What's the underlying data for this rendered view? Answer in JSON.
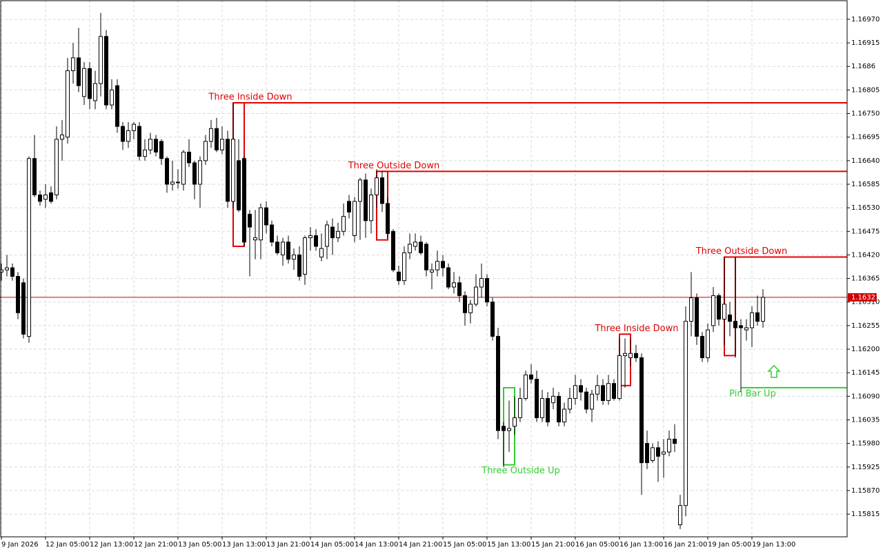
{
  "chart_data": {
    "type": "candlestick",
    "categories": [
      "9 Jan 2026",
      null,
      null,
      null,
      null,
      null,
      null,
      null,
      "12 Jan 05:00",
      null,
      null,
      null,
      null,
      null,
      null,
      null,
      "12 Jan 13:00",
      null,
      null,
      null,
      null,
      null,
      null,
      null,
      "12 Jan 21:00",
      null,
      null,
      null,
      null,
      null,
      null,
      null,
      "13 Jan 05:00",
      null,
      null,
      null,
      null,
      null,
      null,
      null,
      "13 Jan 13:00",
      null,
      null,
      null,
      null,
      null,
      null,
      null,
      "13 Jan 21:00",
      null,
      null,
      null,
      null,
      null,
      null,
      null,
      "14 Jan 05:00",
      null,
      null,
      null,
      null,
      null,
      null,
      null,
      "14 Jan 13:00",
      null,
      null,
      null,
      null,
      null,
      null,
      null,
      "14 Jan 21:00",
      null,
      null,
      null,
      null,
      null,
      null,
      null,
      "15 Jan 05:00",
      null,
      null,
      null,
      null,
      null,
      null,
      null,
      "15 Jan 13:00",
      null,
      null,
      null,
      null,
      null,
      null,
      null,
      "15 Jan 21:00",
      null,
      null,
      null,
      null,
      null,
      null,
      null,
      "16 Jan 05:00",
      null,
      null,
      null,
      null,
      null,
      null,
      null,
      "16 Jan 13:00",
      null,
      null,
      null,
      null,
      null,
      null,
      null,
      "16 Jan 21:00",
      null,
      null,
      null,
      null,
      null,
      null,
      null,
      "19 Jan 05:00",
      null,
      null,
      null,
      null,
      null,
      null,
      null,
      "19 Jan 13:00",
      null,
      null
    ],
    "open": [
      1.1638,
      1.16385,
      1.1639,
      1.1637,
      1.16355,
      1.1623,
      1.16645,
      1.1656,
      1.1655,
      1.16565,
      1.1656,
      1.1669,
      1.16695,
      1.1685,
      1.1688,
      1.1679,
      1.16855,
      1.1678,
      1.1682,
      1.1693,
      1.1677,
      1.16815,
      1.1672,
      1.16685,
      1.1671,
      1.1672,
      1.1665,
      1.16665,
      1.1669,
      1.16685,
      1.16645,
      1.16585,
      1.1659,
      1.16585,
      1.1666,
      1.16635,
      1.16585,
      1.1664,
      1.16685,
      1.16715,
      1.16665,
      1.1669,
      1.16545,
      1.1664,
      1.16645,
      1.16515,
      1.16455,
      1.16455,
      1.1653,
      1.1649,
      1.1645,
      1.1642,
      1.1645,
      1.1641,
      1.1642,
      1.16375,
      1.1646,
      1.16465,
      1.16415,
      1.1644,
      1.16485,
      1.1646,
      1.16475,
      1.16545,
      1.16465,
      1.16545,
      1.16595,
      1.165,
      1.1656,
      1.166,
      1.1654,
      1.16475,
      1.1638,
      1.1636,
      1.16425,
      1.1644,
      1.1645,
      1.16445,
      1.1638,
      1.16385,
      1.16405,
      1.1639,
      1.16345,
      1.16355,
      1.16325,
      1.16285,
      1.16305,
      1.16345,
      1.16365,
      1.1631,
      1.1623,
      1.1602,
      1.1601,
      1.1602,
      1.1604,
      1.16085,
      1.1614,
      1.1613,
      1.1604,
      1.16085,
      1.16075,
      1.1609,
      1.1603,
      1.1606,
      1.16085,
      1.16115,
      1.161,
      1.1606,
      1.16095,
      1.16115,
      1.1608,
      1.1612,
      1.16085,
      1.16185,
      1.1618,
      1.1619,
      1.1618,
      1.1598,
      1.1594,
      1.1597,
      1.15955,
      1.1596,
      1.1599,
      1.1579,
      1.15835,
      1.16265,
      1.1632,
      1.1623,
      1.1618,
      1.16255,
      1.16325,
      1.1627,
      1.1628,
      1.16265,
      1.16255,
      1.16245,
      1.1625,
      1.16285,
      1.16265
    ],
    "high": [
      1.164,
      1.1642,
      1.164,
      1.1638,
      1.16365,
      1.1665,
      1.167,
      1.1657,
      1.16585,
      1.1658,
      1.1672,
      1.16735,
      1.1688,
      1.16915,
      1.1695,
      1.1687,
      1.1687,
      1.1685,
      1.16985,
      1.16945,
      1.1683,
      1.1683,
      1.1673,
      1.1673,
      1.1673,
      1.1673,
      1.1669,
      1.16705,
      1.167,
      1.1669,
      1.1665,
      1.1664,
      1.1662,
      1.16665,
      1.1669,
      1.1664,
      1.1665,
      1.167,
      1.16735,
      1.1674,
      1.1672,
      1.1671,
      1.16775,
      1.1669,
      1.1665,
      1.16525,
      1.16525,
      1.1654,
      1.16545,
      1.165,
      1.16465,
      1.1646,
      1.16465,
      1.16435,
      1.1644,
      1.16465,
      1.16485,
      1.1648,
      1.1647,
      1.165,
      1.16505,
      1.16495,
      1.1654,
      1.1656,
      1.16555,
      1.166,
      1.1661,
      1.16575,
      1.1662,
      1.16615,
      1.16555,
      1.1648,
      1.16395,
      1.1644,
      1.1647,
      1.1647,
      1.16465,
      1.1645,
      1.164,
      1.1643,
      1.1642,
      1.164,
      1.1638,
      1.1637,
      1.16335,
      1.16315,
      1.16375,
      1.164,
      1.16375,
      1.1632,
      1.1625,
      1.1603,
      1.1608,
      1.1609,
      1.1611,
      1.1615,
      1.16165,
      1.1615,
      1.16105,
      1.161,
      1.1611,
      1.161,
      1.16075,
      1.1611,
      1.1614,
      1.1613,
      1.1611,
      1.16105,
      1.1614,
      1.1613,
      1.1614,
      1.1613,
      1.16225,
      1.16225,
      1.16225,
      1.1621,
      1.1619,
      1.1601,
      1.1598,
      1.15985,
      1.1599,
      1.1601,
      1.16025,
      1.1586,
      1.163,
      1.1638,
      1.1633,
      1.1624,
      1.1626,
      1.16345,
      1.1633,
      1.16415,
      1.1631,
      1.16415,
      1.1627,
      1.1627,
      1.163,
      1.16325,
      1.1634
    ],
    "low": [
      1.1636,
      1.1637,
      1.1636,
      1.1627,
      1.16225,
      1.16215,
      1.16555,
      1.16535,
      1.1653,
      1.1654,
      1.1655,
      1.1664,
      1.1668,
      1.1682,
      1.168,
      1.1677,
      1.1676,
      1.1676,
      1.1679,
      1.1676,
      1.1676,
      1.16705,
      1.16665,
      1.1667,
      1.1669,
      1.1664,
      1.1664,
      1.16655,
      1.1665,
      1.1663,
      1.16565,
      1.1657,
      1.16575,
      1.1657,
      1.16625,
      1.1655,
      1.1653,
      1.1663,
      1.1667,
      1.1666,
      1.16655,
      1.1653,
      1.1653,
      1.1652,
      1.1644,
      1.1637,
      1.1641,
      1.1641,
      1.1647,
      1.1644,
      1.1642,
      1.16395,
      1.164,
      1.16385,
      1.1636,
      1.1635,
      1.1643,
      1.1643,
      1.16405,
      1.1641,
      1.1642,
      1.1645,
      1.16465,
      1.16505,
      1.1645,
      1.16455,
      1.1646,
      1.1647,
      1.1653,
      1.1652,
      1.1646,
      1.1638,
      1.1635,
      1.1635,
      1.1641,
      1.1643,
      1.1642,
      1.1637,
      1.1634,
      1.1637,
      1.1637,
      1.1634,
      1.1633,
      1.1631,
      1.16255,
      1.1626,
      1.163,
      1.1632,
      1.163,
      1.1622,
      1.1599,
      1.15925,
      1.1596,
      1.16,
      1.1603,
      1.1608,
      1.1612,
      1.1603,
      1.1603,
      1.1602,
      1.1606,
      1.1602,
      1.1602,
      1.1605,
      1.1607,
      1.1608,
      1.1605,
      1.1603,
      1.1608,
      1.1607,
      1.1607,
      1.1608,
      1.1608,
      1.1611,
      1.1616,
      1.1617,
      1.1586,
      1.1592,
      1.15935,
      1.1589,
      1.159,
      1.1595,
      1.1596,
      1.1578,
      1.1581,
      1.1623,
      1.1621,
      1.1617,
      1.1617,
      1.1624,
      1.16255,
      1.1621,
      1.1623,
      1.1618,
      1.161,
      1.1622,
      1.16205,
      1.16255,
      1.1625
    ],
    "close": [
      1.16385,
      1.1639,
      1.1637,
      1.16285,
      1.16235,
      1.16645,
      1.1656,
      1.16545,
      1.1656,
      1.16545,
      1.1669,
      1.167,
      1.1685,
      1.1688,
      1.16815,
      1.16855,
      1.16785,
      1.1682,
      1.1693,
      1.1677,
      1.16805,
      1.1672,
      1.16685,
      1.1671,
      1.16725,
      1.1665,
      1.16665,
      1.1669,
      1.1666,
      1.16645,
      1.16585,
      1.1659,
      1.1659,
      1.1666,
      1.16635,
      1.16585,
      1.1664,
      1.16685,
      1.16715,
      1.16665,
      1.1669,
      1.16545,
      1.1669,
      1.16525,
      1.1645,
      1.16485,
      1.1646,
      1.1653,
      1.1649,
      1.1645,
      1.16425,
      1.1645,
      1.1641,
      1.1642,
      1.1637,
      1.1646,
      1.16465,
      1.1644,
      1.16435,
      1.1649,
      1.1646,
      1.16475,
      1.1651,
      1.1652,
      1.16545,
      1.16595,
      1.165,
      1.1656,
      1.166,
      1.1654,
      1.1647,
      1.16385,
      1.1636,
      1.16425,
      1.16445,
      1.1645,
      1.16425,
      1.16385,
      1.16385,
      1.16405,
      1.1639,
      1.16345,
      1.16355,
      1.16325,
      1.16285,
      1.16305,
      1.16345,
      1.16365,
      1.1631,
      1.1623,
      1.1601,
      1.1601,
      1.16015,
      1.1604,
      1.16085,
      1.1614,
      1.1613,
      1.1604,
      1.16085,
      1.1603,
      1.1609,
      1.1603,
      1.1606,
      1.16085,
      1.16115,
      1.161,
      1.1606,
      1.16095,
      1.16115,
      1.1608,
      1.1612,
      1.16085,
      1.16185,
      1.1619,
      1.1619,
      1.1618,
      1.15935,
      1.15935,
      1.1597,
      1.1595,
      1.1596,
      1.1599,
      1.1598,
      1.15835,
      1.16265,
      1.1632,
      1.1623,
      1.1618,
      1.16245,
      1.16325,
      1.1627,
      1.16305,
      1.16265,
      1.1625,
      1.1625,
      1.1625,
      1.16285,
      1.16265,
      1.16321
    ],
    "ylim": [
      1.15762,
      1.17015
    ],
    "yticks": [
      {
        "value": 1.1697,
        "label": "1.16970"
      },
      1.16915,
      1.1686,
      1.16805,
      {
        "value": 1.1675,
        "label": "1.16750"
      },
      1.16695,
      {
        "value": 1.1664,
        "label": "1.16640"
      },
      1.16585,
      {
        "value": 1.1653,
        "label": "1.16530"
      },
      1.16475,
      {
        "value": 1.1642,
        "label": "1.16420"
      },
      1.16365,
      {
        "value": 1.1631,
        "label": "1.16310"
      },
      1.16255,
      {
        "value": 1.162,
        "label": "1.16200"
      },
      1.16145,
      {
        "value": 1.1609,
        "label": "1.16090"
      },
      1.16035,
      {
        "value": 1.1598,
        "label": "1.15980"
      },
      1.15925,
      {
        "value": 1.1587,
        "label": "1.15870"
      },
      1.15815
    ],
    "grid": true,
    "bull_color": "#ffffff",
    "bear_color": "#000000",
    "last_price": 1.16321,
    "last_price_color": "#d00000",
    "patterns": [
      {
        "name": "Three Inside Down",
        "color": "#e00000",
        "bars": [
          42,
          44
        ],
        "high": 1.16775,
        "low": 1.1644,
        "level": 1.16775
      },
      {
        "name": "Three Outside Down",
        "color": "#e00000",
        "bars": [
          68,
          70
        ],
        "high": 1.16615,
        "low": 1.16455,
        "level": 1.16615
      },
      {
        "name": "Three Outside Up",
        "color": "#33cc33",
        "bars": [
          91,
          93
        ],
        "high": 1.1611,
        "low": 1.1593
      },
      {
        "name": "Three Inside Down",
        "color": "#e00000",
        "bars": [
          112,
          114
        ],
        "high": 1.16235,
        "low": 1.16115
      },
      {
        "name": "Three Outside Down",
        "color": "#e00000",
        "bars": [
          131,
          133
        ],
        "high": 1.16415,
        "low": 1.16185,
        "level": 1.16415
      },
      {
        "name": "Pin Bar Up",
        "color": "#33cc33",
        "bars": [
          134,
          134
        ],
        "level": 1.1611
      }
    ]
  }
}
